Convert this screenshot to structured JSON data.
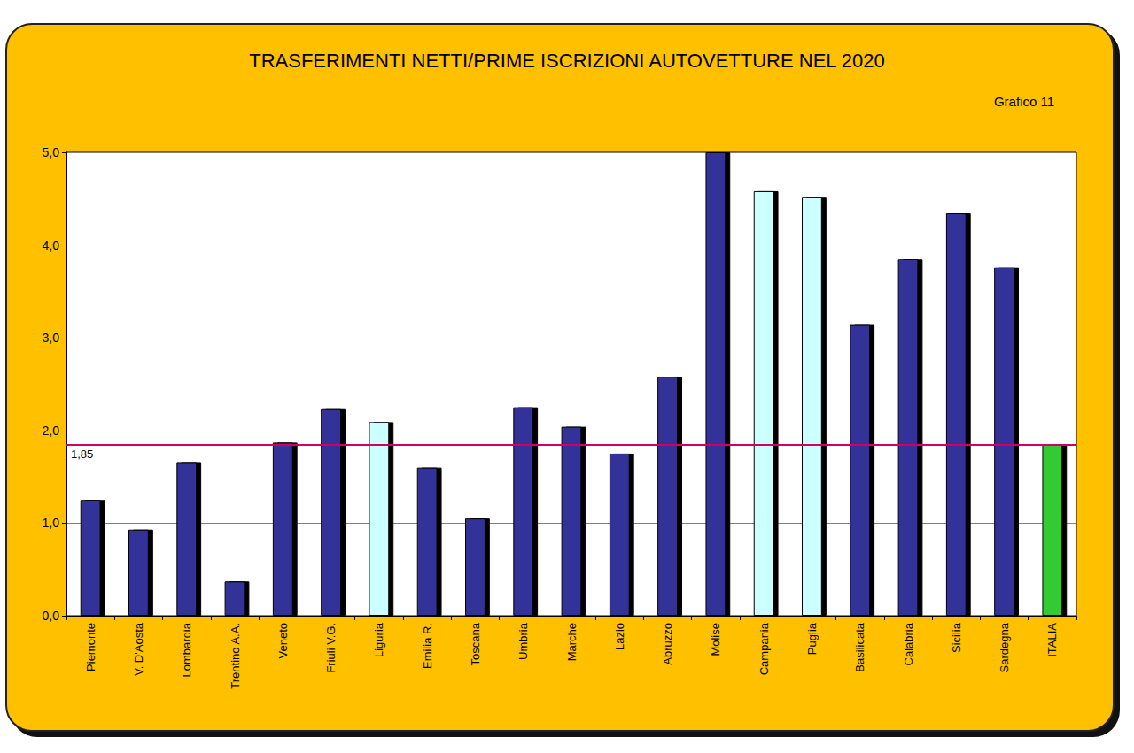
{
  "chart_data": {
    "type": "bar",
    "title": "TRASFERIMENTI NETTI/PRIME ISCRIZIONI AUTOVETTURE NEL 2020",
    "subtitle": "Grafico 11",
    "categories": [
      "Piemonte",
      "V. D'Aosta",
      "Lombardia",
      "Trentino A.A.",
      "Veneto",
      "Friuli V.G.",
      "Liguria",
      "Emilia R.",
      "Toscana",
      "Umbria",
      "Marche",
      "Lazio",
      "Abruzzo",
      "Molise",
      "Campania",
      "Puglia",
      "Basilicata",
      "Calabria",
      "Sicilia",
      "Sardegna",
      "ITALIA"
    ],
    "values": [
      1.25,
      0.93,
      1.65,
      0.37,
      1.87,
      2.23,
      2.09,
      1.6,
      1.05,
      2.25,
      2.04,
      1.75,
      2.58,
      5.0,
      4.58,
      4.52,
      3.14,
      3.85,
      4.34,
      3.76,
      1.85
    ],
    "colors": [
      "#333399",
      "#333399",
      "#333399",
      "#333399",
      "#333399",
      "#333399",
      "#CCFFFF",
      "#333399",
      "#333399",
      "#333399",
      "#333399",
      "#333399",
      "#333399",
      "#333399",
      "#CCFFFF",
      "#CCFFFF",
      "#333399",
      "#333399",
      "#333399",
      "#333399",
      "#33CC33"
    ],
    "ylim": [
      0,
      5
    ],
    "yticks": [
      {
        "value": 0,
        "label": "0,0"
      },
      {
        "value": 1,
        "label": "1,0"
      },
      {
        "value": 2,
        "label": "2,0"
      },
      {
        "value": 3,
        "label": "3,0"
      },
      {
        "value": 4,
        "label": "4,0"
      },
      {
        "value": 5,
        "label": "5,0"
      }
    ],
    "grid": true,
    "reference_line": {
      "value": 1.85,
      "label": "1,85",
      "color": "#CC0066"
    }
  }
}
